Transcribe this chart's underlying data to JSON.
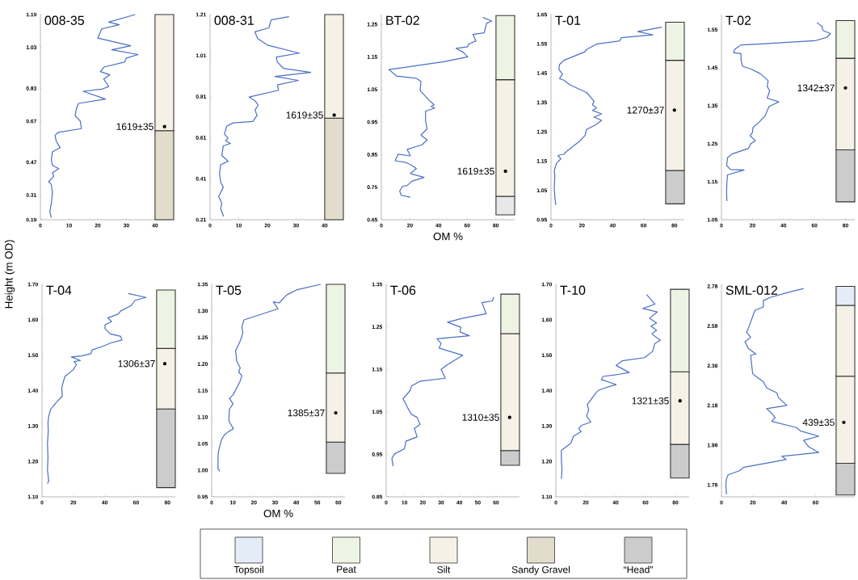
{
  "chart_data": [
    {
      "type": "line",
      "title": "008-35",
      "ylabel": "Height (m OD)",
      "xlim": [
        0,
        46.5
      ],
      "ylim": [
        0.19,
        1.19
      ],
      "xticks": [
        0,
        10,
        20,
        30,
        40
      ],
      "yticks": [
        0.19,
        0.31,
        0.47,
        0.67,
        0.83,
        1.03,
        1.19
      ],
      "series": [
        {
          "color": "#4a6fc4",
          "x": [
            33.1,
            23.8,
            27.5,
            21.4,
            20.0,
            31.5,
            24.9,
            34.1,
            30.0,
            29.3,
            22.2,
            20.9,
            24.2,
            22.1,
            23.8,
            21.4,
            14.9,
            22.7,
            13.3,
            12.6,
            12.1,
            13.9,
            14.3,
            6.2,
            5.1,
            5.5,
            6.9,
            4.2,
            3.8,
            4.2,
            6.4,
            4.2,
            4.7,
            2.9,
            3.8,
            4.2,
            3.8,
            3.3,
            3.8
          ],
          "values": [
            1.19,
            1.153,
            1.14,
            1.12,
            1.075,
            1.038,
            1.018,
            0.995,
            0.978,
            0.958,
            0.934,
            0.912,
            0.896,
            0.876,
            0.839,
            0.826,
            0.816,
            0.778,
            0.757,
            0.733,
            0.697,
            0.671,
            0.634,
            0.616,
            0.601,
            0.574,
            0.541,
            0.521,
            0.481,
            0.455,
            0.439,
            0.418,
            0.402,
            0.375,
            0.362,
            0.322,
            0.269,
            0.23,
            0.2
          ]
        }
      ],
      "bands": [
        {
          "axis": "y",
          "from": 0.19,
          "to": 0.624,
          "color": "#e2dccd"
        },
        {
          "axis": "y",
          "from": 0.624,
          "to": 1.19,
          "color": "#f6f1e6"
        }
      ],
      "annotations": [
        {
          "text": "1619±35",
          "x": 43.3,
          "y": 0.644
        }
      ]
    },
    {
      "type": "line",
      "title": "008-31",
      "xlim": [
        0,
        46.5
      ],
      "ylim": [
        0.21,
        1.21
      ],
      "xticks": [
        0,
        10,
        20,
        30,
        40
      ],
      "yticks": [
        0.21,
        0.41,
        0.61,
        0.81,
        1.01,
        1.21
      ],
      "series": [
        {
          "color": "#4a6fc4",
          "x": [
            27.5,
            21.3,
            20.5,
            15.6,
            16.6,
            20.0,
            31.1,
            23.1,
            23.5,
            25.6,
            35.1,
            22.6,
            30.8,
            23.5,
            23.9,
            13.6,
            15.7,
            16.8,
            15.7,
            16.4,
            14.9,
            8.0,
            5.8,
            5.0,
            6.3,
            5.4,
            7.1,
            4.6,
            4.1,
            6.3,
            3.7,
            3.3,
            3.7,
            4.6,
            3.0,
            4.1,
            3.7,
            4.7
          ],
          "values": [
            1.2,
            1.184,
            1.145,
            1.126,
            1.093,
            1.061,
            1.022,
            1.003,
            0.977,
            0.948,
            0.928,
            0.908,
            0.889,
            0.867,
            0.841,
            0.808,
            0.789,
            0.77,
            0.744,
            0.718,
            0.689,
            0.682,
            0.666,
            0.627,
            0.608,
            0.595,
            0.582,
            0.569,
            0.523,
            0.495,
            0.478,
            0.433,
            0.394,
            0.368,
            0.323,
            0.29,
            0.264,
            0.226
          ]
        }
      ],
      "bands": [
        {
          "axis": "y",
          "from": 0.21,
          "to": 0.705,
          "color": "#e2dccd"
        },
        {
          "axis": "y",
          "from": 0.705,
          "to": 1.21,
          "color": "#f6f1e6"
        }
      ],
      "annotations": [
        {
          "text": "1619±35",
          "x": 43.3,
          "y": 0.72
        }
      ]
    },
    {
      "type": "line",
      "title": "BT-02",
      "xlabel": "OM %",
      "xlim": [
        0,
        93.2
      ],
      "ylim": [
        0.65,
        1.28
      ],
      "xticks": [
        0,
        20,
        40,
        60,
        80
      ],
      "yticks": [
        0.65,
        0.75,
        0.85,
        0.95,
        1.05,
        1.15,
        1.25
      ],
      "series": [
        {
          "color": "#4a6fc4",
          "x": [
            71.0,
            77.2,
            73.6,
            71.9,
            64.0,
            66.1,
            60.8,
            60.4,
            52.3,
            57.0,
            60.4,
            43.7,
            5.3,
            10.7,
            24.5,
            27.7,
            27.1,
            33.1,
            36.9,
            34.8,
            37.3,
            30.9,
            30.9,
            32.0,
            27.7,
            32.0,
            28.4,
            18.1,
            20.3,
            11.7,
            9.6,
            17.1,
            21.3,
            24.5,
            20.3,
            29.9,
            21.3,
            18.1,
            14.9,
            12.8,
            13.9,
            20.3
          ],
          "values": [
            1.271,
            1.26,
            1.253,
            1.224,
            1.219,
            1.199,
            1.189,
            1.181,
            1.176,
            1.165,
            1.15,
            1.135,
            1.111,
            1.091,
            1.084,
            1.075,
            1.047,
            1.018,
            1.003,
            0.998,
            0.993,
            0.983,
            0.954,
            0.929,
            0.91,
            0.895,
            0.88,
            0.866,
            0.846,
            0.851,
            0.831,
            0.826,
            0.817,
            0.807,
            0.792,
            0.78,
            0.768,
            0.755,
            0.753,
            0.738,
            0.725,
            0.719
          ]
        }
      ],
      "bands": [
        {
          "axis": "y",
          "from": 0.665,
          "to": 0.722,
          "color": "#e8e8e8"
        },
        {
          "axis": "y",
          "from": 0.722,
          "to": 1.08,
          "color": "#f6f1e6"
        },
        {
          "axis": "y",
          "from": 1.08,
          "to": 1.277,
          "color": "#eef4e4"
        }
      ],
      "annotations": [
        {
          "text": "1619±35",
          "x": 86.8,
          "y": 0.799
        }
      ]
    },
    {
      "type": "line",
      "title": "T-01",
      "xlim": [
        0,
        86.4
      ],
      "ylim": [
        0.95,
        1.65
      ],
      "xticks": [
        0,
        20,
        40,
        60,
        80
      ],
      "yticks": [
        0.95,
        1.05,
        1.15,
        1.25,
        1.35,
        1.45,
        1.55,
        1.65
      ],
      "series": [
        {
          "color": "#4a6fc4",
          "x": [
            71.8,
            56.2,
            66.0,
            45.5,
            44.5,
            29.9,
            23.0,
            22.0,
            8.4,
            5.5,
            5.1,
            7.4,
            5.5,
            8.4,
            12.3,
            23.0,
            27.9,
            26.9,
            29.5,
            26.9,
            32.8,
            27.9,
            32.8,
            28.9,
            23.0,
            22.0,
            18.1,
            14.2,
            10.3,
            8.4,
            4.5,
            6.4,
            3.5,
            2.1,
            2.5,
            2.1,
            2.5,
            3.1
          ],
          "values": [
            1.607,
            1.592,
            1.581,
            1.571,
            1.56,
            1.55,
            1.531,
            1.523,
            1.494,
            1.479,
            1.463,
            1.447,
            1.431,
            1.426,
            1.41,
            1.384,
            1.355,
            1.342,
            1.332,
            1.323,
            1.311,
            1.3,
            1.289,
            1.274,
            1.258,
            1.237,
            1.216,
            1.2,
            1.184,
            1.174,
            1.169,
            1.158,
            1.142,
            1.116,
            1.1,
            1.058,
            1.027,
            1.0
          ]
        }
      ],
      "bands": [
        {
          "axis": "y",
          "from": 1.004,
          "to": 1.118,
          "color": "#cccccc"
        },
        {
          "axis": "y",
          "from": 1.118,
          "to": 1.494,
          "color": "#f6f1e6"
        },
        {
          "axis": "y",
          "from": 1.494,
          "to": 1.624,
          "color": "#eef4e4"
        }
      ],
      "annotations": [
        {
          "text": "1270±37",
          "x": 80,
          "y": 1.324
        }
      ]
    },
    {
      "type": "line",
      "title": "T-02",
      "xlim": [
        0,
        86
      ],
      "ylim": [
        1.05,
        1.59
      ],
      "xticks": [
        0,
        20,
        40,
        60,
        80
      ],
      "yticks": [
        1.05,
        1.15,
        1.25,
        1.35,
        1.45,
        1.55
      ],
      "series": [
        {
          "color": "#4a6fc4",
          "x": [
            61.6,
            65.0,
            65.4,
            70.3,
            68.0,
            60.2,
            23.3,
            12.6,
            8.7,
            7.8,
            12.6,
            12.6,
            13.6,
            19.4,
            25.2,
            30.1,
            29.5,
            31.1,
            29.5,
            36.9,
            30.7,
            28.2,
            24.3,
            20.4,
            20.0,
            18.4,
            21.9,
            18.8,
            17.5,
            6.8,
            3.9,
            3.3,
            5.8,
            14.6,
            3.9,
            3.5,
            3.3,
            3.5
          ],
          "values": [
            1.569,
            1.558,
            1.548,
            1.54,
            1.53,
            1.521,
            1.512,
            1.51,
            1.499,
            1.49,
            1.487,
            1.471,
            1.454,
            1.446,
            1.434,
            1.416,
            1.401,
            1.389,
            1.37,
            1.36,
            1.348,
            1.324,
            1.307,
            1.293,
            1.28,
            1.271,
            1.258,
            1.25,
            1.238,
            1.223,
            1.213,
            1.193,
            1.182,
            1.181,
            1.168,
            1.148,
            1.124,
            1.099
          ]
        }
      ],
      "bands": [
        {
          "axis": "y",
          "from": 1.097,
          "to": 1.234,
          "color": "#cccccc"
        },
        {
          "axis": "y",
          "from": 1.234,
          "to": 1.475,
          "color": "#f6f1e6"
        },
        {
          "axis": "y",
          "from": 1.475,
          "to": 1.574,
          "color": "#eef4e4"
        }
      ],
      "annotations": [
        {
          "text": "1342±37",
          "x": 80,
          "y": 1.397
        }
      ]
    },
    {
      "type": "line",
      "title": "T-04",
      "xlim": [
        0,
        85
      ],
      "ylim": [
        1.1,
        1.7
      ],
      "xticks": [
        0,
        20,
        40,
        60,
        80
      ],
      "yticks": [
        {
          "value": 1.1,
          "label": "1.10"
        },
        {
          "value": 1.2,
          "label": "1.20"
        },
        {
          "value": 1.3,
          "label": "1.30"
        },
        {
          "value": 1.4,
          "label": "1.40"
        },
        {
          "value": 1.5,
          "label": "1.50"
        },
        {
          "value": 1.6,
          "label": "1.60"
        },
        {
          "value": 1.7,
          "label": "1.70"
        }
      ],
      "series": [
        {
          "color": "#4a6fc4",
          "x": [
            55.1,
            66.4,
            59.3,
            56.8,
            50.2,
            48.5,
            41.9,
            44.4,
            40.2,
            40.2,
            43.5,
            50.2,
            51.0,
            43.5,
            39.4,
            32.0,
            31.1,
            25.3,
            18.7,
            24.5,
            20.4,
            22.0,
            20.0,
            14.6,
            13.4,
            12.6,
            12.9,
            9.6,
            5.5,
            4.3,
            3.8,
            4.0,
            3.5,
            3.8,
            3.5,
            4.3,
            3.5
          ],
          "values": [
            1.674,
            1.663,
            1.655,
            1.64,
            1.625,
            1.616,
            1.605,
            1.595,
            1.586,
            1.575,
            1.56,
            1.553,
            1.543,
            1.534,
            1.526,
            1.515,
            1.504,
            1.498,
            1.495,
            1.485,
            1.482,
            1.474,
            1.459,
            1.44,
            1.422,
            1.407,
            1.384,
            1.369,
            1.347,
            1.328,
            1.309,
            1.287,
            1.25,
            1.212,
            1.175,
            1.145,
            1.137
          ]
        }
      ],
      "bands": [
        {
          "axis": "y",
          "from": 1.126,
          "to": 1.348,
          "color": "#cccccc"
        },
        {
          "axis": "y",
          "from": 1.348,
          "to": 1.519,
          "color": "#f6f1e6"
        },
        {
          "axis": "y",
          "from": 1.519,
          "to": 1.684,
          "color": "#eef4e4"
        }
      ],
      "annotations": [
        {
          "text": "1306±37",
          "x": 78.3,
          "y": 1.476
        }
      ]
    },
    {
      "type": "line",
      "title": "T-05",
      "xlabel": "OM %",
      "xlim": [
        0,
        63.1
      ],
      "ylim": [
        0.95,
        1.35
      ],
      "xticks": [
        0,
        10,
        20,
        30,
        40,
        50,
        60
      ],
      "yticks": [
        0.95,
        {
          "value": 1.0,
          "label": "1.00"
        },
        1.05,
        {
          "value": 1.1,
          "label": "1.10"
        },
        1.15,
        {
          "value": 1.2,
          "label": "1.20"
        },
        1.25,
        {
          "value": 1.3,
          "label": "1.30"
        },
        1.35
      ],
      "series": [
        {
          "color": "#4a6fc4",
          "x": [
            51.6,
            40.5,
            35.5,
            31.9,
            29.2,
            31.4,
            15.3,
            14.3,
            14.7,
            13.5,
            11.3,
            11.9,
            13.5,
            12.8,
            14.3,
            13.5,
            10.3,
            8.4,
            10.1,
            8.4,
            8.1,
            10.3,
            8.1,
            6.3,
            4.7,
            4.0,
            3.1,
            3.0,
            3.0,
            3.8
          ],
          "values": [
            1.35,
            1.34,
            1.33,
            1.315,
            1.317,
            1.304,
            1.283,
            1.27,
            1.258,
            1.243,
            1.225,
            1.205,
            1.193,
            1.185,
            1.178,
            1.168,
            1.143,
            1.135,
            1.125,
            1.115,
            1.093,
            1.078,
            1.073,
            1.068,
            1.058,
            1.048,
            1.033,
            1.018,
            1.003,
            0.998
          ]
        }
      ],
      "bands": [
        {
          "axis": "y",
          "from": 0.994,
          "to": 1.053,
          "color": "#cccccc"
        },
        {
          "axis": "y",
          "from": 1.053,
          "to": 1.183,
          "color": "#f6f1e6"
        },
        {
          "axis": "y",
          "from": 1.183,
          "to": 1.35,
          "color": "#eef4e4"
        }
      ],
      "annotations": [
        {
          "text": "1385±37",
          "x": 58.7,
          "y": 1.108
        }
      ]
    },
    {
      "type": "line",
      "title": "T-06",
      "xlim": [
        0,
        72.8
      ],
      "ylim": [
        0.85,
        1.35
      ],
      "xticks": [
        0,
        10,
        20,
        30,
        40,
        50,
        60
      ],
      "yticks": [
        0.85,
        0.95,
        1.05,
        1.15,
        1.25,
        1.35
      ],
      "series": [
        {
          "color": "#4a6fc4",
          "x": [
            58.8,
            58.0,
            52.3,
            54.6,
            41.5,
            33.5,
            40.8,
            40.3,
            45.4,
            27.7,
            30.0,
            28.9,
            41.8,
            33.1,
            30.0,
            32.3,
            18.5,
            13.8,
            13.1,
            9.2,
            10.5,
            12.3,
            13.8,
            16.9,
            18.5,
            15.4,
            16.9,
            10.8,
            10.0,
            4.6,
            3.1,
            3.8
          ],
          "values": [
            1.32,
            1.311,
            1.307,
            1.281,
            1.27,
            1.261,
            1.249,
            1.238,
            1.229,
            1.222,
            1.211,
            1.2,
            1.183,
            1.16,
            1.15,
            1.129,
            1.122,
            1.111,
            1.1,
            1.081,
            1.07,
            1.055,
            1.044,
            1.037,
            1.02,
            1.011,
            0.991,
            0.981,
            0.963,
            0.951,
            0.94,
            0.922
          ]
        }
      ],
      "bands": [
        {
          "axis": "y",
          "from": 0.924,
          "to": 0.959,
          "color": "#cccccc"
        },
        {
          "axis": "y",
          "from": 0.959,
          "to": 1.234,
          "color": "#f6f1e6"
        },
        {
          "axis": "y",
          "from": 1.234,
          "to": 1.327,
          "color": "#eef4e4"
        }
      ],
      "annotations": [
        {
          "text": "1310±35",
          "x": 67.4,
          "y": 1.037
        }
      ]
    },
    {
      "type": "line",
      "title": "T-10",
      "xlim": [
        0,
        89.2
      ],
      "ylim": [
        1.1,
        1.7
      ],
      "xticks": [
        0,
        20,
        40,
        60,
        80
      ],
      "yticks": [
        {
          "value": 1.1,
          "label": "1.10"
        },
        {
          "value": 1.2,
          "label": "1.20"
        },
        {
          "value": 1.3,
          "label": "1.30"
        },
        {
          "value": 1.4,
          "label": "1.40"
        },
        {
          "value": 1.5,
          "label": "1.50"
        },
        {
          "value": 1.6,
          "label": "1.60"
        },
        {
          "value": 1.7,
          "label": "1.70"
        }
      ],
      "series": [
        {
          "color": "#4a6fc4",
          "x": [
            60.7,
            66.4,
            58.2,
            67.8,
            62.7,
            67.4,
            63.7,
            67.4,
            64.2,
            69.9,
            66.2,
            64.8,
            59.3,
            44.4,
            40.3,
            49.1,
            39.3,
            31.6,
            30.5,
            40.3,
            33.2,
            28.1,
            25.5,
            21.0,
            22.0,
            20.6,
            23.4,
            17.3,
            15.3,
            16.9,
            11.8,
            10.2,
            8.8,
            3.7,
            3.7,
            4.1,
            3.7
          ],
          "values": [
            1.671,
            1.644,
            1.632,
            1.622,
            1.604,
            1.591,
            1.582,
            1.57,
            1.56,
            1.542,
            1.533,
            1.511,
            1.493,
            1.484,
            1.471,
            1.451,
            1.444,
            1.44,
            1.431,
            1.417,
            1.408,
            1.4,
            1.386,
            1.36,
            1.346,
            1.328,
            1.311,
            1.302,
            1.293,
            1.284,
            1.271,
            1.253,
            1.247,
            1.231,
            1.204,
            1.177,
            1.151
          ]
        }
      ],
      "bands": [
        {
          "axis": "y",
          "from": 1.153,
          "to": 1.248,
          "color": "#cccccc"
        },
        {
          "axis": "y",
          "from": 1.248,
          "to": 1.453,
          "color": "#f6f1e6"
        },
        {
          "axis": "y",
          "from": 1.453,
          "to": 1.686,
          "color": "#eef4e4"
        }
      ],
      "annotations": [
        {
          "text": "1321±35",
          "x": 83.1,
          "y": 1.371
        }
      ]
    },
    {
      "type": "line",
      "title": "SML-012",
      "xlim": [
        0,
        85
      ],
      "ylim": [
        1.72,
        2.79
      ],
      "xticks": [
        0,
        20,
        40,
        60
      ],
      "yticks": [
        1.78,
        1.98,
        2.18,
        2.38,
        2.58,
        2.78
      ],
      "series": [
        {
          "color": "#4a6fc4",
          "x": [
            52.4,
            41.7,
            31.0,
            26.7,
            26.7,
            21.4,
            19.9,
            17.7,
            16.0,
            18.6,
            15.0,
            17.1,
            22.0,
            18.6,
            19.2,
            19.9,
            22.4,
            26.7,
            28.8,
            35.3,
            36.3,
            41.7,
            28.8,
            32.1,
            34.2,
            32.1,
            48.1,
            50.2,
            62.0,
            52.4,
            55.6,
            62.0,
            38.5,
            41.2,
            13.9,
            11.8,
            4.3,
            3.2,
            2.8,
            3.2
          ],
          "values": [
            2.769,
            2.748,
            2.724,
            2.708,
            2.676,
            2.66,
            2.628,
            2.58,
            2.548,
            2.524,
            2.5,
            2.468,
            2.439,
            2.433,
            2.388,
            2.34,
            2.324,
            2.3,
            2.268,
            2.244,
            2.22,
            2.18,
            2.164,
            2.14,
            2.119,
            2.1,
            2.068,
            2.052,
            2.025,
            2.004,
            1.972,
            1.943,
            1.924,
            1.908,
            1.868,
            1.852,
            1.831,
            1.812,
            1.78,
            1.732
          ]
        }
      ],
      "bands": [
        {
          "axis": "y",
          "from": 1.729,
          "to": 1.889,
          "color": "#cccccc"
        },
        {
          "axis": "y",
          "from": 1.889,
          "to": 2.327,
          "color": "#f6f1e6"
        },
        {
          "axis": "y",
          "from": 2.327,
          "to": 2.684,
          "color": "#f6f1e6"
        },
        {
          "axis": "y",
          "from": 2.684,
          "to": 2.78,
          "color": "#e3ecf7"
        }
      ],
      "annotations": [
        {
          "text": "439±35",
          "x": 78.0,
          "y": 2.095
        }
      ]
    },
    {
      "type": "other",
      "annotations": [
        "Topsoil",
        "Peat",
        "Silt",
        "Sandy Gravel",
        "“Head”"
      ],
      "colors": [
        "#e3ecf7",
        "#eef4e4",
        "#f6f1e6",
        "#e2dccd",
        "#cccccc"
      ]
    }
  ]
}
